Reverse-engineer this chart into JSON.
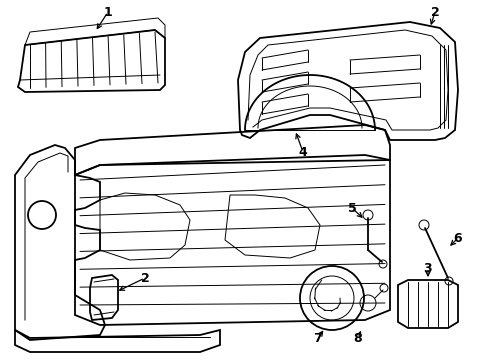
{
  "background_color": "#ffffff",
  "line_color": "#000000",
  "lw_main": 1.3,
  "lw_inner": 0.7,
  "figsize": [
    4.89,
    3.6
  ],
  "dpi": 100,
  "label_fontsize": 9
}
